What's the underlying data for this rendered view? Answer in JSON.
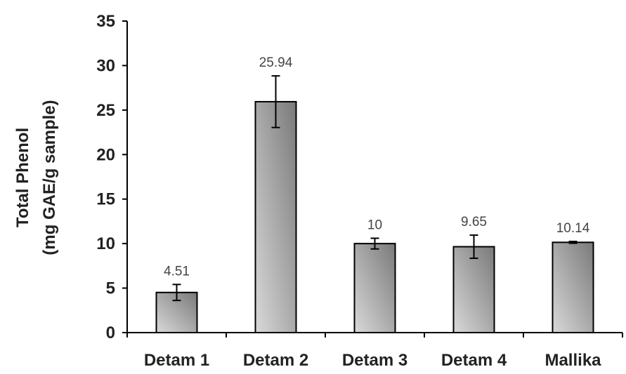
{
  "chart_data": {
    "type": "bar",
    "categories": [
      "Detam 1",
      "Detam 2",
      "Detam 3",
      "Detam 4",
      "Mallika"
    ],
    "values": [
      4.51,
      25.94,
      10,
      9.65,
      10.14
    ],
    "value_labels": [
      "4.51",
      "25.94",
      "10",
      "9.65",
      "10.14"
    ],
    "error": [
      0.9,
      2.9,
      0.6,
      1.3,
      0.1
    ],
    "ylabel_line1": "Total Phenol",
    "ylabel_line2": "(mg GAE/g sample)",
    "ylim": [
      0,
      35
    ],
    "yticks": [
      0,
      5,
      10,
      15,
      20,
      25,
      30,
      35
    ],
    "ytick_labels": [
      "0",
      "5",
      "10",
      "15",
      "20",
      "25",
      "30",
      "35"
    ],
    "grid": false,
    "bar_fill_light": "#d9d9d9",
    "bar_fill_dark": "#7a7a7a",
    "bar_stroke": "#000000"
  }
}
